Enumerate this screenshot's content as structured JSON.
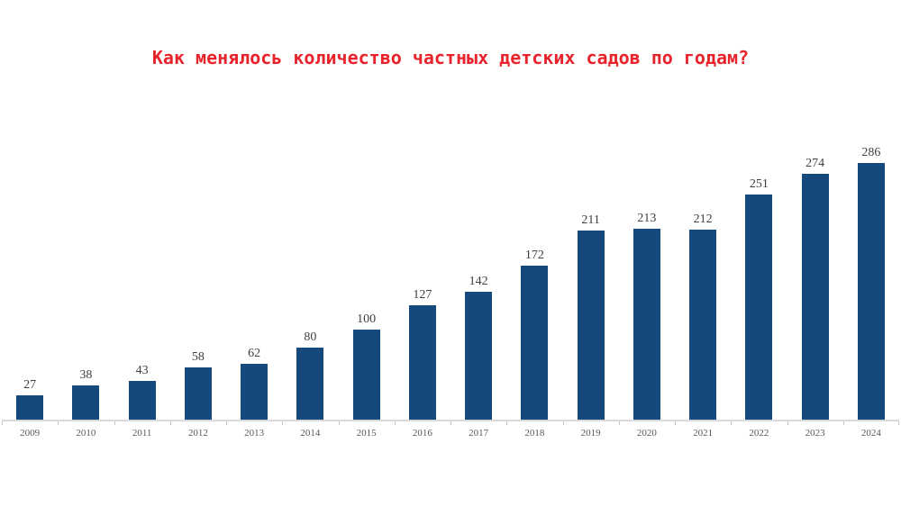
{
  "page": {
    "background": "#ffffff"
  },
  "chart_data": {
    "type": "bar",
    "title": "Как менялось количество частных детских садов по годам?",
    "title_color": "#e9232b",
    "categories": [
      "2009",
      "2010",
      "2011",
      "2012",
      "2013",
      "2014",
      "2015",
      "2016",
      "2017",
      "2018",
      "2019",
      "2020",
      "2021",
      "2022",
      "2023",
      "2024"
    ],
    "values": [
      27,
      38,
      43,
      58,
      62,
      80,
      100,
      127,
      142,
      172,
      211,
      213,
      212,
      251,
      274,
      286
    ],
    "xlabel": "",
    "ylabel": "",
    "ylim": [
      0,
      300
    ],
    "grid": false,
    "legend": false,
    "value_labels_shown": true,
    "bar_color": "#15497e",
    "value_label_color": "#404040",
    "tick_label_color": "#595959",
    "axis_line_color": "#d9d9d9"
  }
}
